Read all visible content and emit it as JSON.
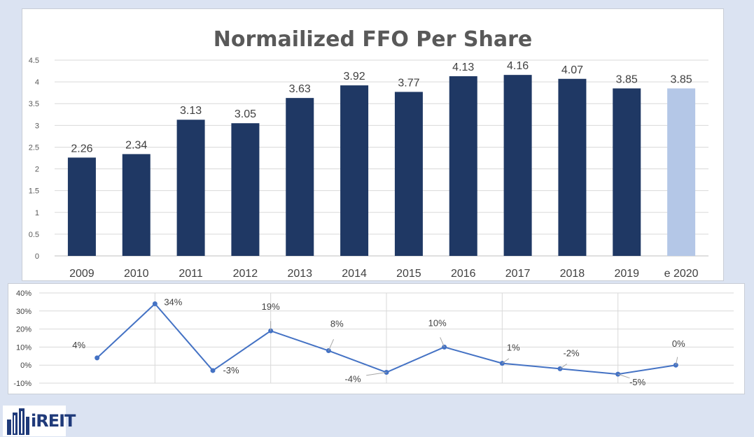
{
  "chart_data": [
    {
      "type": "bar",
      "title": "Normailized FFO Per Share",
      "categories": [
        "2009",
        "2010",
        "2011",
        "2012",
        "2013",
        "2014",
        "2015",
        "2016",
        "2017",
        "2018",
        "2019",
        "e 2020"
      ],
      "values": [
        2.26,
        2.34,
        3.13,
        3.05,
        3.63,
        3.92,
        3.77,
        4.13,
        4.16,
        4.07,
        3.85,
        3.85
      ],
      "data_labels": [
        "2.26",
        "2.34",
        "3.13",
        "3.05",
        "3.63",
        "3.92",
        "3.77",
        "4.13",
        "4.16",
        "4.07",
        "3.85",
        "3.85"
      ],
      "ylim": [
        0,
        4.5
      ],
      "yticks": [
        "0",
        "0.5",
        "1",
        "1.5",
        "2",
        "2.5",
        "3",
        "3.5",
        "4",
        "4.5"
      ],
      "grid": true,
      "colors": {
        "actual": "#1f3864",
        "estimate": "#b4c7e7"
      }
    },
    {
      "type": "line",
      "values": [
        4,
        34,
        -3,
        19,
        8,
        -4,
        10,
        1,
        -2,
        -5,
        0
      ],
      "data_labels": [
        "4%",
        "34%",
        "-3%",
        "19%",
        "8%",
        "-4%",
        "10%",
        "1%",
        "-2%",
        "-5%",
        "0%"
      ],
      "ylim": [
        -10,
        40
      ],
      "yticks": [
        "-10%",
        "0%",
        "10%",
        "20%",
        "30%",
        "40%"
      ],
      "grid": true,
      "colors": {
        "line": "#4472c4"
      }
    }
  ],
  "logo": {
    "text": "iREIT"
  }
}
